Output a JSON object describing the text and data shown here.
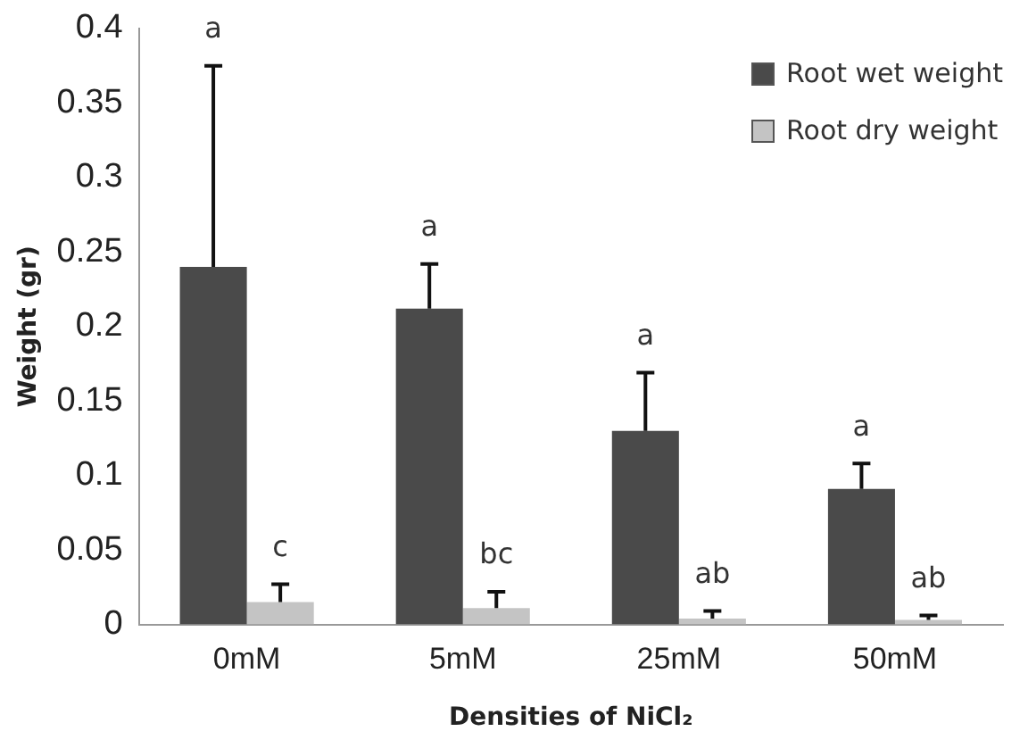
{
  "chart_data": {
    "type": "bar",
    "xlabel": "Densities of NiCl₂",
    "ylabel": "Weight (gr)",
    "categories": [
      "0mM",
      "5mM",
      "25mM",
      "50mM"
    ],
    "series": [
      {
        "name": "Root wet weight",
        "color": "#4a4a4a",
        "values": [
          0.24,
          0.212,
          0.13,
          0.091
        ],
        "errors": [
          [
            0.24,
            0.375
          ],
          [
            0.212,
            0.242
          ],
          [
            0.13,
            0.169
          ],
          [
            0.091,
            0.108
          ]
        ]
      },
      {
        "name": "Root dry weight",
        "color": "#c4c4c4",
        "values": [
          0.015,
          0.011,
          0.004,
          0.003
        ],
        "errors": [
          [
            0.015,
            0.027
          ],
          [
            0.011,
            0.022
          ],
          [
            0.004,
            0.009
          ],
          [
            0.003,
            0.006
          ]
        ]
      }
    ],
    "ylim": [
      0,
      0.4
    ],
    "yticks": [
      0,
      0.05,
      0.1,
      0.15,
      0.2,
      0.25,
      0.3,
      0.35,
      0.4
    ],
    "grid": false,
    "legend": "top right",
    "annotations": [
      "a",
      "c",
      "a",
      "bc",
      "a",
      "ab",
      "a",
      "ab"
    ]
  }
}
